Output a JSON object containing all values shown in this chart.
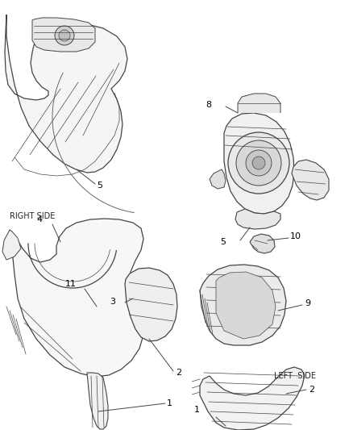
{
  "background_color": "#ffffff",
  "line_color": "#444444",
  "label_color": "#000000",
  "fig_width": 4.38,
  "fig_height": 5.33,
  "dpi": 100
}
